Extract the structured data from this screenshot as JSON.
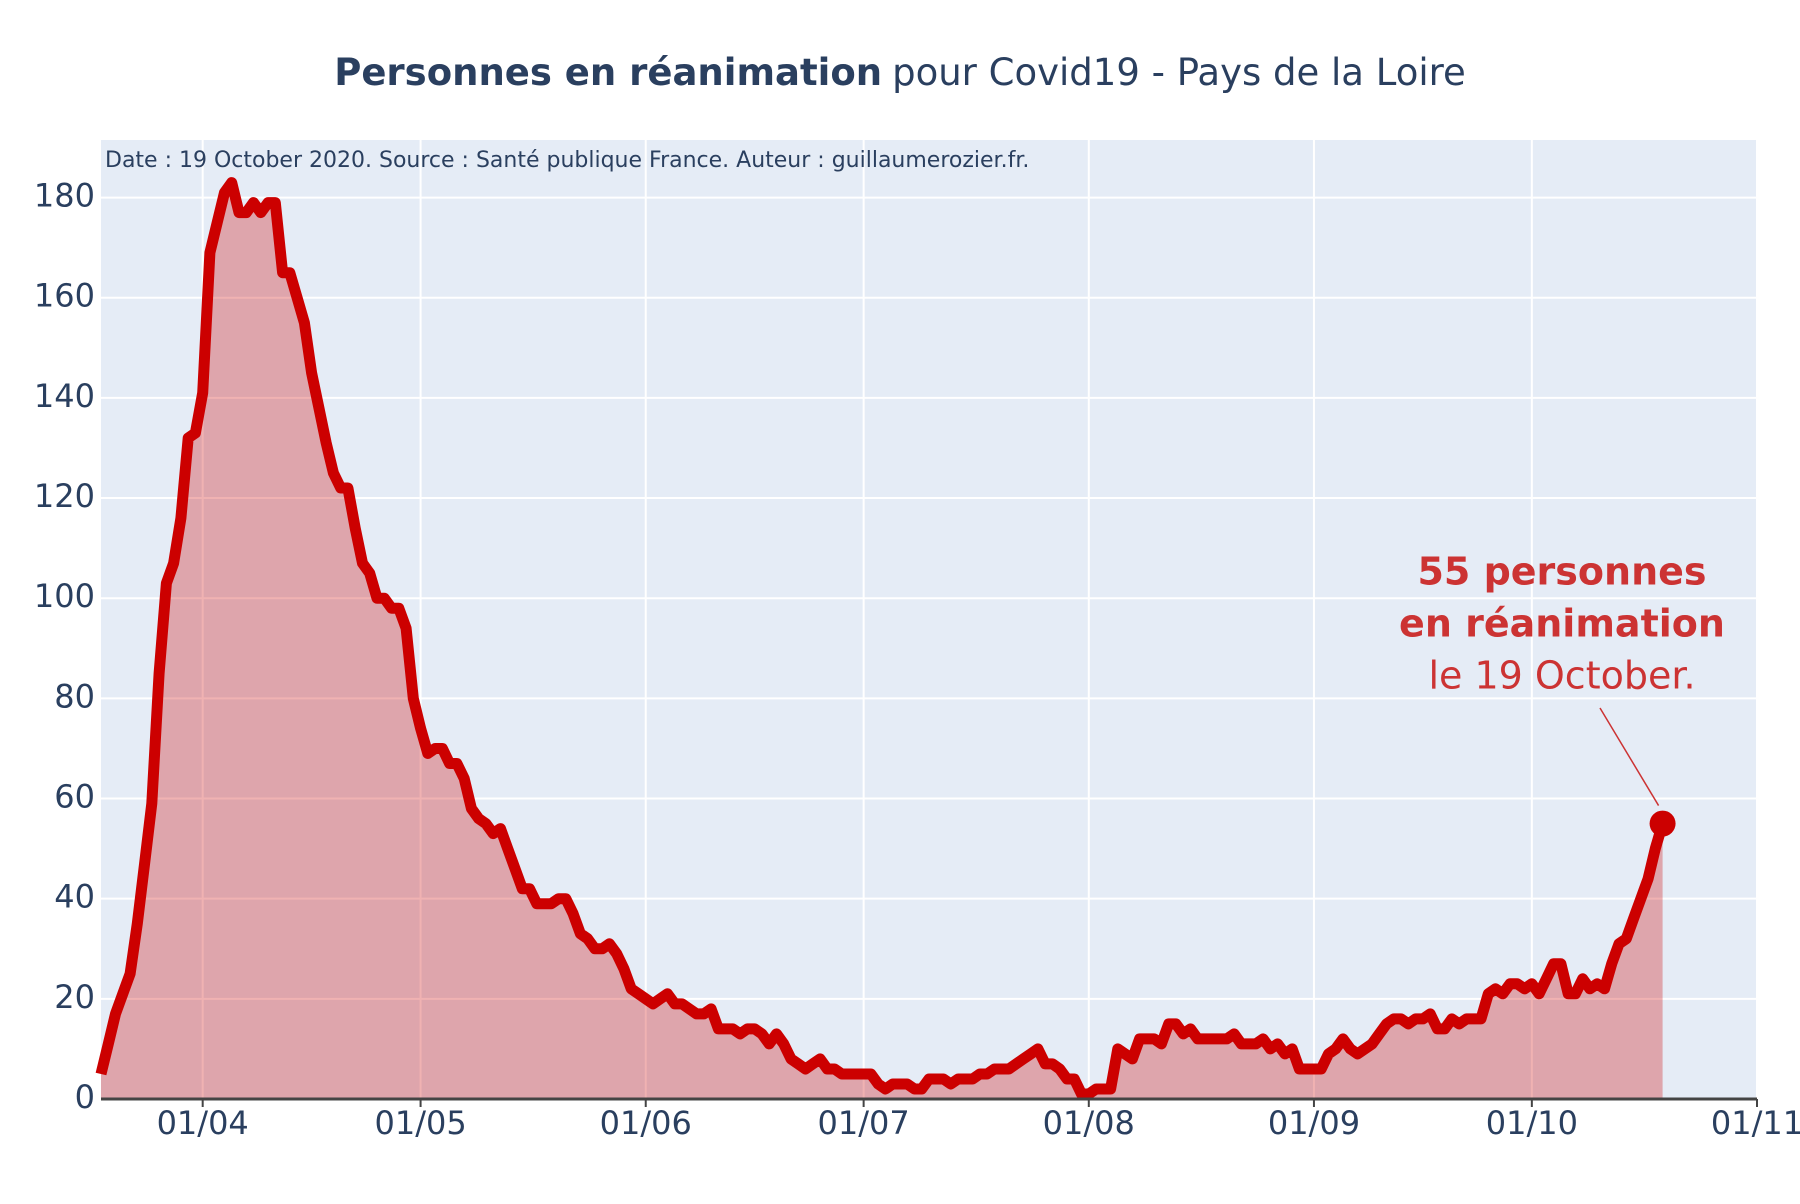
{
  "chart_data": {
    "type": "area",
    "title_bold": "Personnes en réanimation",
    "title": "pour Covid19 - Pays de la Loire",
    "source": "Date : 19 October 2020. Source : Santé publique France. Auteur : guillaumerozier.fr.",
    "annotation": [
      "55 personnes",
      "en réanimation",
      "le 19 October."
    ],
    "x": [
      "18/03",
      "19/03",
      "20/03",
      "21/03",
      "22/03",
      "23/03",
      "24/03",
      "25/03",
      "26/03",
      "27/03",
      "28/03",
      "29/03",
      "30/03",
      "31/03",
      "01/04",
      "02/04",
      "03/04",
      "04/04",
      "05/04",
      "06/04",
      "07/04",
      "08/04",
      "09/04",
      "10/04",
      "11/04",
      "12/04",
      "13/04",
      "14/04",
      "15/04",
      "16/04",
      "17/04",
      "18/04",
      "19/04",
      "20/04",
      "21/04",
      "22/04",
      "23/04",
      "24/04",
      "25/04",
      "26/04",
      "27/04",
      "28/04",
      "29/04",
      "30/04",
      "01/05",
      "02/05",
      "03/05",
      "04/05",
      "05/05",
      "06/05",
      "07/05",
      "08/05",
      "09/05",
      "10/05",
      "11/05",
      "12/05",
      "13/05",
      "14/05",
      "15/05",
      "16/05",
      "17/05",
      "18/05",
      "19/05",
      "20/05",
      "21/05",
      "22/05",
      "23/05",
      "24/05",
      "25/05",
      "26/05",
      "27/05",
      "28/05",
      "29/05",
      "30/05",
      "31/05",
      "01/06",
      "02/06",
      "03/06",
      "04/06",
      "05/06",
      "06/06",
      "07/06",
      "08/06",
      "09/06",
      "10/06",
      "11/06",
      "12/06",
      "13/06",
      "14/06",
      "15/06",
      "16/06",
      "17/06",
      "18/06",
      "19/06",
      "20/06",
      "21/06",
      "22/06",
      "23/06",
      "24/06",
      "25/06",
      "26/06",
      "27/06",
      "28/06",
      "29/06",
      "30/06",
      "01/07",
      "02/07",
      "03/07",
      "04/07",
      "05/07",
      "06/07",
      "07/07",
      "08/07",
      "09/07",
      "10/07",
      "11/07",
      "12/07",
      "13/07",
      "14/07",
      "15/07",
      "16/07",
      "17/07",
      "18/07",
      "19/07",
      "20/07",
      "21/07",
      "22/07",
      "23/07",
      "24/07",
      "25/07",
      "26/07",
      "27/07",
      "28/07",
      "29/07",
      "30/07",
      "31/07",
      "01/08",
      "02/08",
      "03/08",
      "04/08",
      "05/08",
      "06/08",
      "07/08",
      "08/08",
      "09/08",
      "10/08",
      "11/08",
      "12/08",
      "13/08",
      "14/08",
      "15/08",
      "16/08",
      "17/08",
      "18/08",
      "19/08",
      "20/08",
      "21/08",
      "22/08",
      "23/08",
      "24/08",
      "25/08",
      "26/08",
      "27/08",
      "28/08",
      "29/08",
      "30/08",
      "31/08",
      "01/09",
      "02/09",
      "03/09",
      "04/09",
      "05/09",
      "06/09",
      "07/09",
      "08/09",
      "09/09",
      "10/09",
      "11/09",
      "12/09",
      "13/09",
      "14/09",
      "15/09",
      "16/09",
      "17/09",
      "18/09",
      "19/09",
      "20/09",
      "21/09",
      "22/09",
      "23/09",
      "24/09",
      "25/09",
      "26/09",
      "27/09",
      "28/09",
      "29/09",
      "30/09",
      "01/10",
      "02/10",
      "03/10",
      "04/10",
      "05/10",
      "06/10",
      "07/10",
      "08/10",
      "09/10",
      "10/10",
      "11/10",
      "12/10",
      "13/10",
      "14/10",
      "15/10",
      "16/10",
      "17/10",
      "18/10",
      "19/10"
    ],
    "series": [
      {
        "color": "#cc0000",
        "fill": "rgba(204,0,0,0.3)",
        "values": [
          5,
          11,
          17,
          21,
          25,
          35,
          47,
          59,
          85,
          103,
          107,
          116,
          132,
          133,
          141,
          169,
          175,
          181,
          183,
          177,
          177,
          179,
          177,
          179,
          179,
          165,
          165,
          160,
          155,
          145,
          138,
          131,
          125,
          122,
          122,
          114,
          107,
          105,
          100,
          100,
          98,
          98,
          94,
          80,
          74,
          69,
          70,
          70,
          67,
          67,
          64,
          58,
          56,
          55,
          53,
          54,
          50,
          46,
          42,
          42,
          39,
          39,
          39,
          40,
          40,
          37,
          33,
          32,
          30,
          30,
          31,
          29,
          26,
          22,
          21,
          20,
          19,
          20,
          21,
          19,
          19,
          18,
          17,
          17,
          18,
          14,
          14,
          14,
          13,
          14,
          14,
          13,
          11,
          13,
          11,
          8,
          7,
          6,
          7,
          8,
          6,
          6,
          5,
          5,
          5,
          5,
          5,
          3,
          2,
          3,
          3,
          3,
          2,
          2,
          4,
          4,
          4,
          3,
          4,
          4,
          4,
          5,
          5,
          6,
          6,
          6,
          7,
          8,
          9,
          10,
          7,
          7,
          6,
          4,
          4,
          1,
          1,
          2,
          2,
          2,
          10,
          9,
          8,
          12,
          12,
          12,
          11,
          15,
          15,
          13,
          14,
          12,
          12,
          12,
          12,
          12,
          13,
          11,
          11,
          11,
          12,
          10,
          11,
          9,
          10,
          6,
          6,
          6,
          6,
          9,
          10,
          12,
          10,
          9,
          10,
          11,
          13,
          15,
          16,
          16,
          15,
          16,
          16,
          17,
          14,
          14,
          16,
          15,
          16,
          16,
          16,
          21,
          22,
          21,
          23,
          23,
          22,
          23,
          21,
          24,
          27,
          27,
          21,
          21,
          24,
          22,
          23,
          22,
          27,
          31,
          32,
          36,
          40,
          44,
          50,
          55
        ]
      }
    ],
    "xlim": [
      "18/03",
      "01/11"
    ],
    "xticks": [
      "01/04",
      "01/05",
      "01/06",
      "01/07",
      "01/08",
      "01/09",
      "01/10",
      "01/11"
    ],
    "ylim": [
      0,
      191.5
    ],
    "yticks": [
      0,
      20,
      40,
      60,
      80,
      100,
      120,
      140,
      160,
      180
    ],
    "grid": true,
    "annotation_color": "#cc3333"
  }
}
